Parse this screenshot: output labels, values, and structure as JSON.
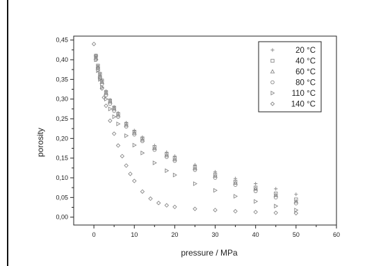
{
  "chart_data": {
    "type": "scatter",
    "xlabel": "pressure / MPa",
    "ylabel": "porosity",
    "xlim": [
      -5,
      60
    ],
    "ylim": [
      -0.02,
      0.46
    ],
    "xticks": [
      0,
      10,
      20,
      30,
      40,
      50,
      60
    ],
    "xtick_labels": [
      "0",
      "10",
      "20",
      "30",
      "40",
      "50",
      "60"
    ],
    "yticks": [
      0.0,
      0.05,
      0.1,
      0.15,
      0.2,
      0.25,
      0.3,
      0.35,
      0.4,
      0.45
    ],
    "ytick_labels": [
      "0,00",
      "0,05",
      "0,10",
      "0,15",
      "0,20",
      "0,25",
      "0,30",
      "0,35",
      "0,40",
      "0,45"
    ],
    "grid": false,
    "legend_position": "top-right",
    "marker_color": "#888888",
    "series": [
      {
        "name": "20 °C",
        "marker": "plus",
        "x": [
          0.5,
          1,
          1.5,
          2,
          3,
          4,
          5,
          6,
          8,
          10,
          12,
          15,
          18,
          20,
          25,
          30,
          35,
          40,
          45,
          50
        ],
        "y": [
          0.41,
          0.385,
          0.365,
          0.348,
          0.32,
          0.298,
          0.28,
          0.265,
          0.24,
          0.22,
          0.203,
          0.182,
          0.165,
          0.155,
          0.133,
          0.115,
          0.098,
          0.085,
          0.072,
          0.058
        ]
      },
      {
        "name": "40 °C",
        "marker": "square",
        "x": [
          0.5,
          1,
          1.5,
          2,
          3,
          4,
          5,
          6,
          8,
          10,
          12,
          15,
          18,
          20,
          25,
          30,
          35,
          40,
          45,
          50
        ],
        "y": [
          0.41,
          0.385,
          0.364,
          0.347,
          0.318,
          0.296,
          0.278,
          0.262,
          0.237,
          0.217,
          0.2,
          0.178,
          0.16,
          0.15,
          0.127,
          0.108,
          0.09,
          0.075,
          0.06,
          0.045
        ]
      },
      {
        "name": "60 °C",
        "marker": "triangle",
        "x": [
          0.5,
          1,
          1.5,
          2,
          3,
          4,
          5,
          6,
          8,
          10,
          12,
          15,
          18,
          20,
          25,
          30,
          35,
          40,
          45,
          50
        ],
        "y": [
          0.405,
          0.38,
          0.36,
          0.343,
          0.315,
          0.293,
          0.275,
          0.259,
          0.234,
          0.214,
          0.197,
          0.175,
          0.157,
          0.147,
          0.124,
          0.105,
          0.087,
          0.072,
          0.056,
          0.04
        ]
      },
      {
        "name": "80 °C",
        "marker": "circle",
        "x": [
          0.5,
          1,
          1.5,
          2,
          3,
          4,
          5,
          6,
          8,
          10,
          12,
          15,
          18,
          20,
          25,
          30,
          35,
          40,
          45,
          50
        ],
        "y": [
          0.4,
          0.375,
          0.355,
          0.338,
          0.31,
          0.288,
          0.27,
          0.255,
          0.23,
          0.21,
          0.193,
          0.171,
          0.153,
          0.143,
          0.12,
          0.1,
          0.082,
          0.066,
          0.05,
          0.035
        ]
      },
      {
        "name": "110 °C",
        "marker": "triangle-right",
        "x": [
          0.5,
          1,
          1.5,
          2,
          3,
          4,
          5,
          6,
          8,
          10,
          12,
          15,
          18,
          20,
          25,
          30,
          35,
          40,
          45,
          50
        ],
        "y": [
          0.4,
          0.372,
          0.35,
          0.33,
          0.3,
          0.275,
          0.255,
          0.237,
          0.207,
          0.183,
          0.163,
          0.138,
          0.118,
          0.107,
          0.085,
          0.068,
          0.053,
          0.04,
          0.028,
          0.018
        ]
      },
      {
        "name": "140 °C",
        "marker": "diamond",
        "x": [
          0,
          0.5,
          1,
          1.5,
          2,
          2.5,
          3,
          4,
          5,
          6,
          7,
          8,
          9,
          10,
          12,
          14,
          16,
          18,
          20,
          25,
          30,
          35,
          40,
          45,
          50
        ],
        "y": [
          0.44,
          0.41,
          0.38,
          0.352,
          0.327,
          0.304,
          0.283,
          0.245,
          0.212,
          0.182,
          0.155,
          0.131,
          0.11,
          0.092,
          0.065,
          0.047,
          0.036,
          0.03,
          0.026,
          0.021,
          0.018,
          0.015,
          0.013,
          0.011,
          0.01
        ]
      }
    ]
  }
}
